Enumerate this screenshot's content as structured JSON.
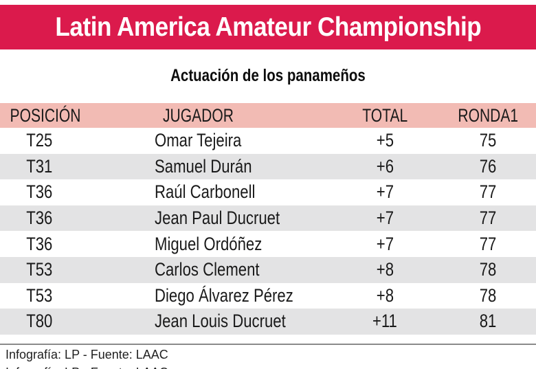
{
  "banner": {
    "title": "Latin America Amateur Championship",
    "bg_color": "#DB1A4C",
    "text_color": "#FFFFFF"
  },
  "subtitle": "Actuación de los panameños",
  "colors": {
    "table_header_bg": "#F2BBB4",
    "row_stripe": "#E3E3E4",
    "text": "#1A1A1A",
    "divider": "#8A8A8A"
  },
  "chart_data": {
    "type": "table",
    "title": "Latin America Amateur Championship",
    "subtitle": "Actuación de los panameños",
    "columns": [
      "POSICIÓN",
      "JUGADOR",
      "TOTAL",
      "RONDA1"
    ],
    "rows": [
      [
        "T25",
        "Omar Tejeira",
        "+5",
        "75"
      ],
      [
        "T31",
        "Samuel Durán",
        "+6",
        "76"
      ],
      [
        "T36",
        "Raúl Carbonell",
        "+7",
        "77"
      ],
      [
        "T36",
        "Jean Paul Ducruet",
        "+7",
        "77"
      ],
      [
        "T36",
        "Miguel Ordóñez",
        "+7",
        "77"
      ],
      [
        "T53",
        "Carlos Clement",
        "+8",
        "78"
      ],
      [
        "T53",
        "Diego Álvarez Pérez",
        "+8",
        "78"
      ],
      [
        "T80",
        "Jean Louis Ducruet",
        "+11",
        "81"
      ]
    ],
    "source": "Infografía: LP - Fuente: LAAC"
  },
  "footer": {
    "credit": "Infografía: LP - Fuente: LAAC"
  }
}
